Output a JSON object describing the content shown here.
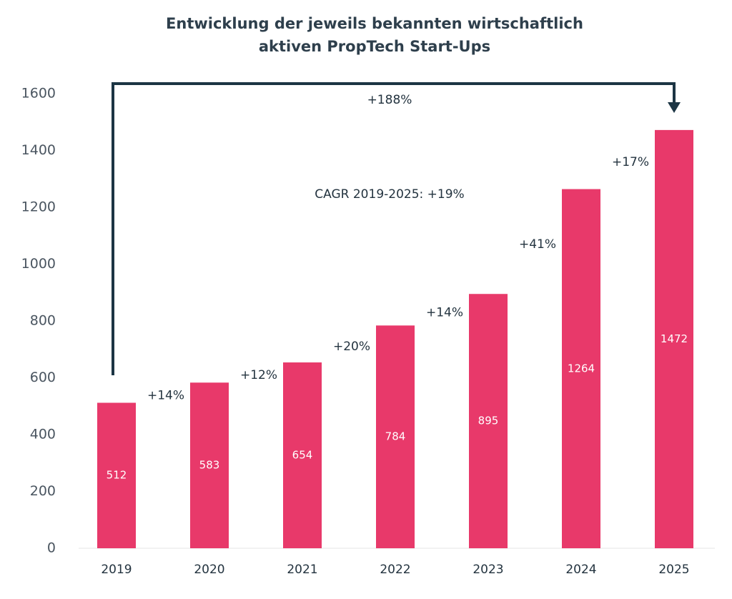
{
  "chart_data": {
    "type": "bar",
    "title": [
      "Entwicklung der jeweils bekannten wirtschaftlich",
      "aktiven PropTech Start-Ups"
    ],
    "categories": [
      "2019",
      "2020",
      "2021",
      "2022",
      "2023",
      "2024",
      "2025"
    ],
    "values": [
      512,
      583,
      654,
      784,
      895,
      1264,
      1472
    ],
    "color": "#e8396a",
    "ylim": [
      0,
      1600
    ],
    "yticks": [
      0,
      200,
      400,
      600,
      800,
      1000,
      1200,
      1400,
      1600
    ],
    "grid": false,
    "growth_labels": [
      "+14%",
      "+12%",
      "+20%",
      "+14%",
      "+41%",
      "+17%"
    ],
    "total_growth_label": "+188%",
    "cagr_label": "CAGR 2019-2025: +19%"
  }
}
